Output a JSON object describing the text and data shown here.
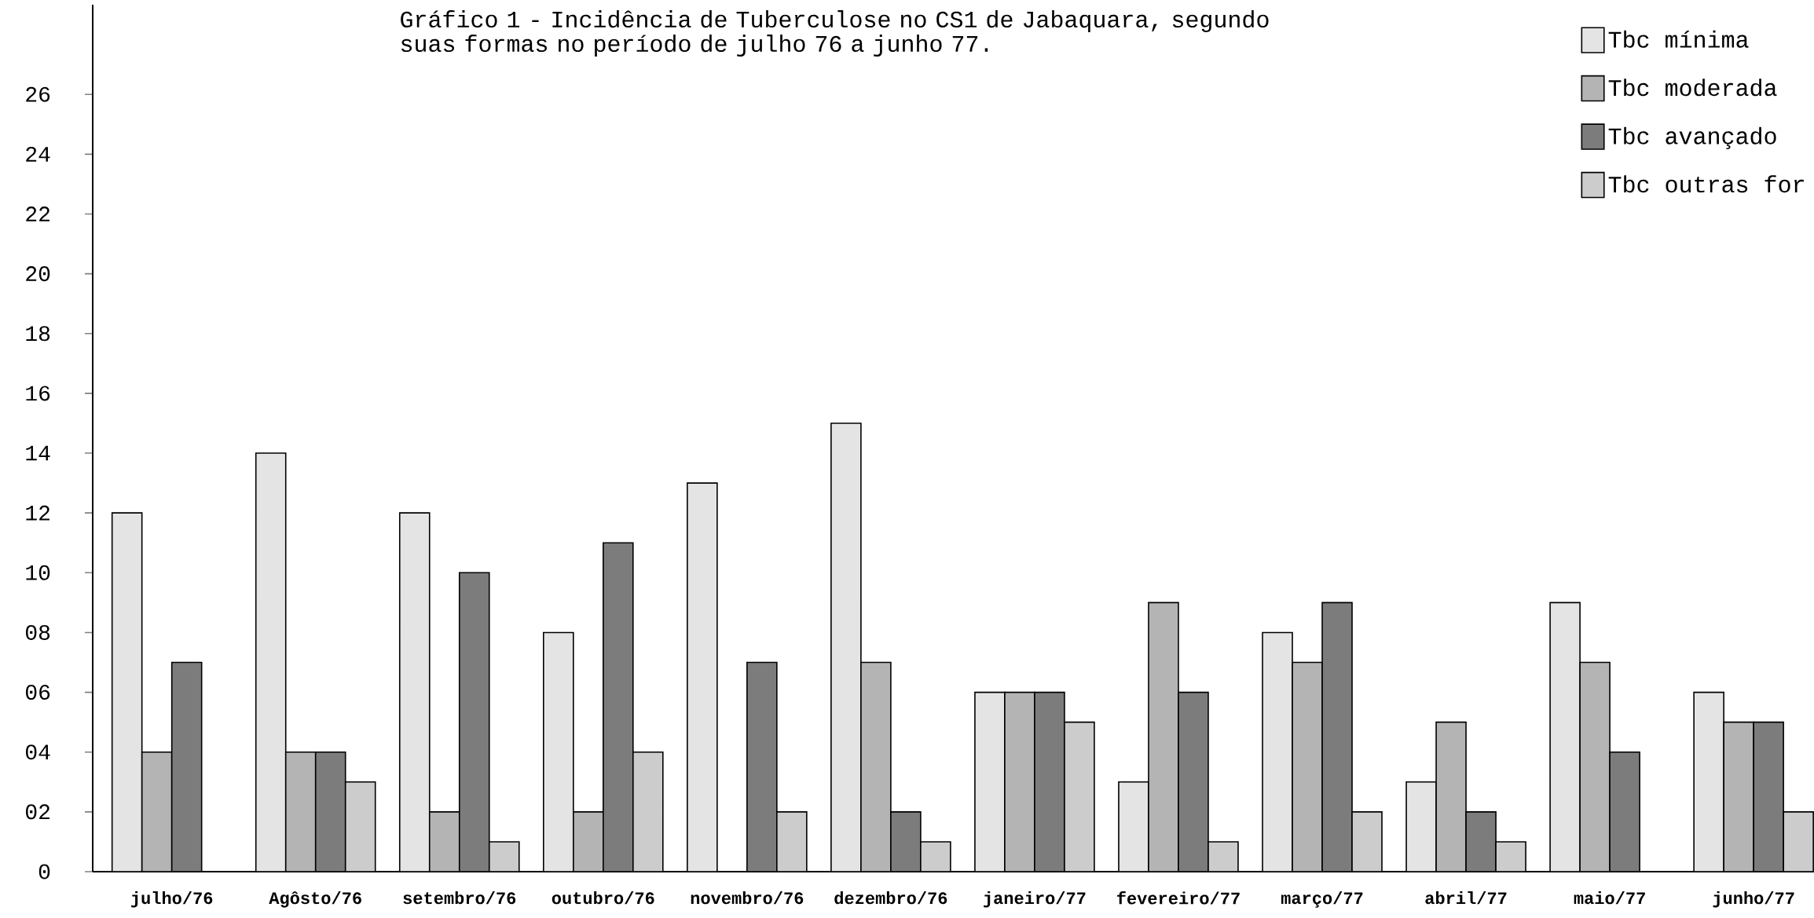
{
  "chart_data": {
    "type": "bar",
    "title": "Gráfico 1 - Incidência de Tuberculose no CS1 de Jabaquara, segundo suas formas no período de julho 76 a junho 77.",
    "categories": [
      "julho/76",
      "Agôsto/76",
      "setembro/76",
      "outubro/76",
      "novembro/76",
      "dezembro/76",
      "janeiro/77",
      "fevereiro/77",
      "março/77",
      "abril/77",
      "maio/77",
      "junho/77"
    ],
    "series": [
      {
        "name": "Tbc mínima",
        "color": "#e4e4e4",
        "values": [
          12,
          14,
          12,
          8,
          13,
          15,
          6,
          3,
          8,
          3,
          9,
          6
        ]
      },
      {
        "name": "Tbc moderada",
        "color": "#b4b4b4",
        "values": [
          4,
          4,
          2,
          2,
          null,
          7,
          6,
          9,
          7,
          5,
          7,
          5
        ]
      },
      {
        "name": "Tbc avançado",
        "color": "#7c7c7c",
        "values": [
          7,
          4,
          10,
          11,
          7,
          2,
          6,
          6,
          9,
          2,
          4,
          5
        ]
      },
      {
        "name": "Tbc outras for",
        "color": "#cccccc",
        "values": [
          null,
          3,
          1,
          4,
          2,
          1,
          5,
          1,
          2,
          1,
          null,
          2
        ]
      }
    ],
    "ylim": [
      0,
      29
    ],
    "yticks": [
      0,
      {
        "value": 2,
        "label": "02"
      },
      {
        "value": 4,
        "label": "04"
      },
      {
        "value": 6,
        "label": "06"
      },
      {
        "value": 8,
        "label": "08"
      },
      10,
      12,
      14,
      16,
      18,
      20,
      22,
      24,
      26
    ],
    "legend": "top right",
    "grid": false
  }
}
